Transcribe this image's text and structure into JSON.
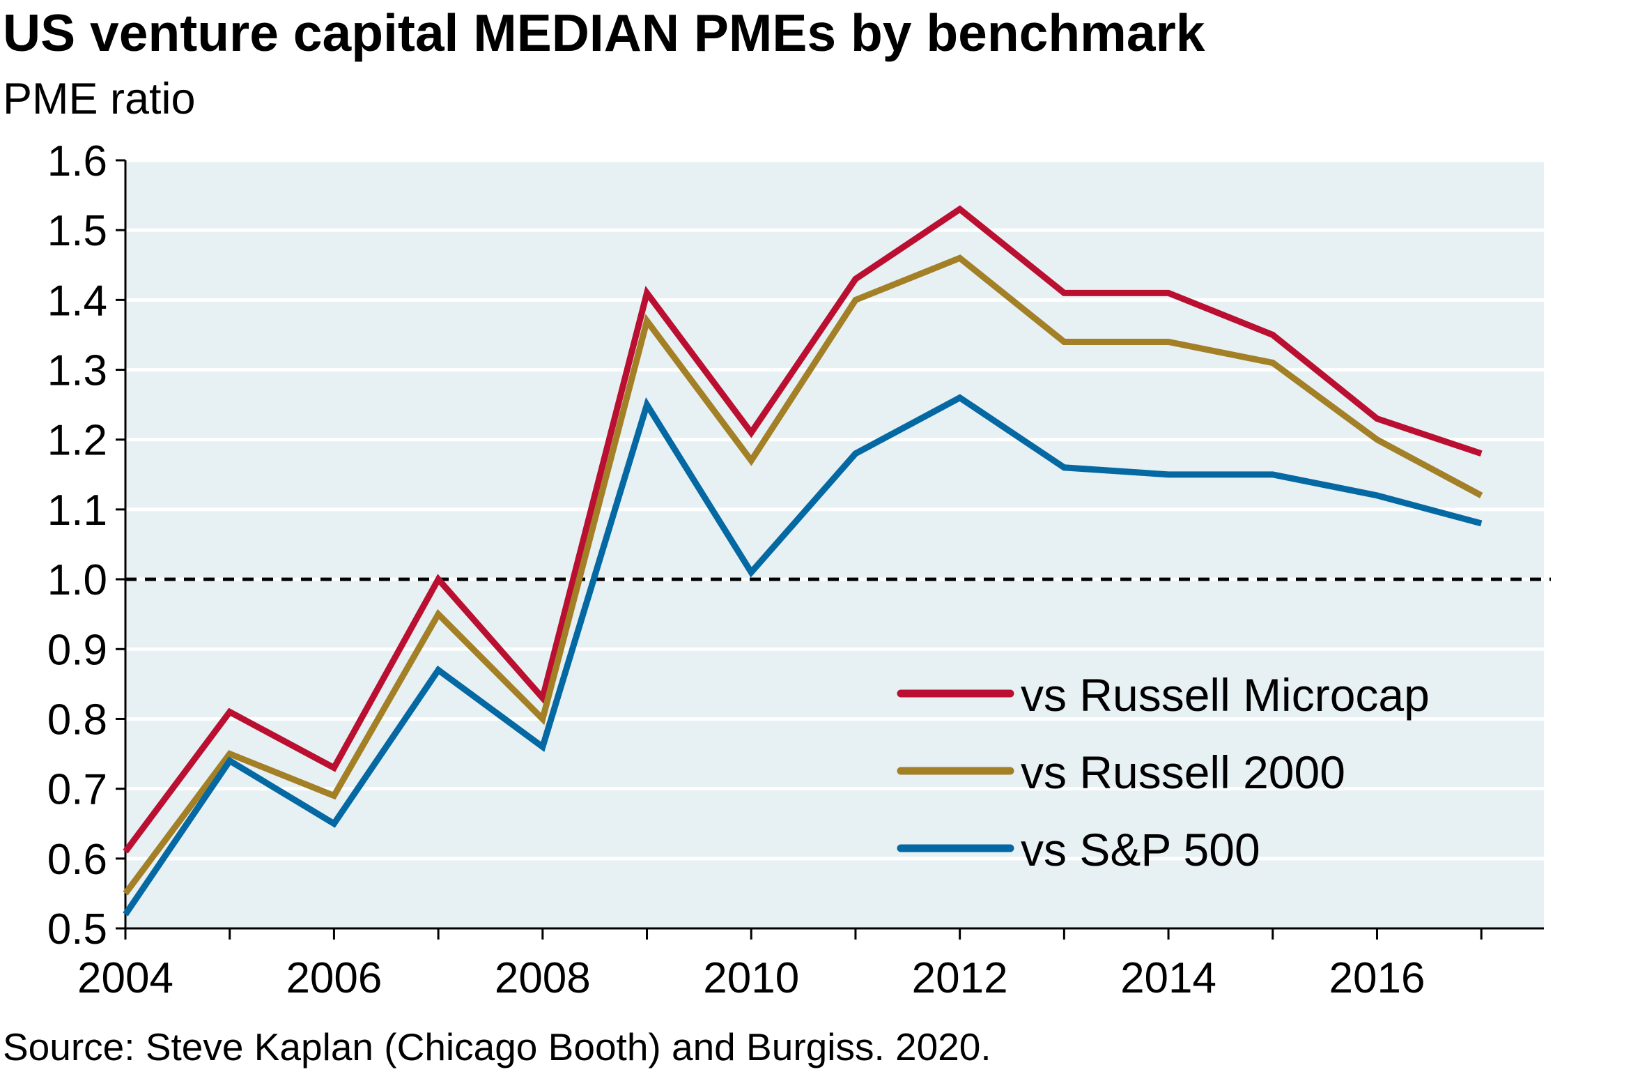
{
  "chart_data": {
    "type": "line",
    "title": "US venture capital MEDIAN PMEs by benchmark",
    "ylabel": "PME ratio",
    "xlabel": "",
    "source": "Source: Steve Kaplan (Chicago Booth) and Burgiss. 2020.",
    "x": [
      2004,
      2005,
      2006,
      2007,
      2008,
      2009,
      2010,
      2011,
      2012,
      2013,
      2014,
      2015,
      2016,
      2017
    ],
    "xlim": [
      2004,
      2017.6
    ],
    "ylim": [
      0.5,
      1.6
    ],
    "xticks": [
      "2004",
      "2006",
      "2008",
      "2010",
      "2012",
      "2014",
      "2016"
    ],
    "yticks": [
      "0.5",
      "0.6",
      "0.7",
      "0.8",
      "0.9",
      "1.0",
      "1.1",
      "1.2",
      "1.3",
      "1.4",
      "1.5",
      "1.6"
    ],
    "reference_line": 1.0,
    "grid": true,
    "legend_position": "bottom-right",
    "background": "#E7F0F3",
    "series": [
      {
        "name": "vs Russell Microcap",
        "color": "#BA0F30",
        "values": [
          0.61,
          0.81,
          0.73,
          1.0,
          0.83,
          1.41,
          1.21,
          1.43,
          1.53,
          1.41,
          1.41,
          1.35,
          1.23,
          1.18
        ]
      },
      {
        "name": "vs Russell 2000",
        "color": "#A37F26",
        "values": [
          0.55,
          0.75,
          0.69,
          0.95,
          0.8,
          1.37,
          1.17,
          1.4,
          1.46,
          1.34,
          1.34,
          1.31,
          1.2,
          1.12
        ]
      },
      {
        "name": "vs S&P 500",
        "color": "#0468A3",
        "values": [
          0.52,
          0.74,
          0.65,
          0.87,
          0.76,
          1.25,
          1.01,
          1.18,
          1.26,
          1.16,
          1.15,
          1.15,
          1.12,
          1.08
        ]
      }
    ]
  }
}
